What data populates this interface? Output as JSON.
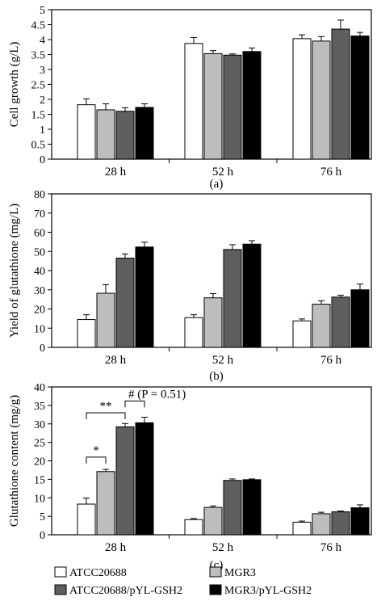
{
  "figure": {
    "colors": {
      "ATCC20688": "#ffffff",
      "MGR3": "#bdbdbd",
      "ATCC20688/pYL-GSH2": "#5f5f5f",
      "MGR3/pYL-GSH2": "#000000"
    }
  },
  "legend": {
    "items": [
      {
        "label": "ATCC20688",
        "color": "#ffffff"
      },
      {
        "label": "MGR3",
        "color": "#bdbdbd"
      },
      {
        "label": "ATCC20688/pYL-GSH2",
        "color": "#5f5f5f"
      },
      {
        "label": "MGR3/pYL-GSH2",
        "color": "#000000"
      }
    ]
  },
  "chart_data": [
    {
      "type": "bar",
      "panel_label": "(a)",
      "ylabel": "Cell growth (g/L)",
      "ylim": [
        0,
        5
      ],
      "yticks": [
        "0",
        "0.5",
        "1",
        "1.5",
        "2",
        "2.5",
        "3",
        "3.5",
        "4",
        "4.5",
        "5"
      ],
      "categories": [
        "28 h",
        "52 h",
        "76 h"
      ],
      "series": [
        {
          "name": "ATCC20688",
          "values": [
            1.82,
            3.87,
            4.03
          ],
          "errors": [
            0.2,
            0.2,
            0.13
          ]
        },
        {
          "name": "MGR3",
          "values": [
            1.65,
            3.53,
            3.95
          ],
          "errors": [
            0.2,
            0.1,
            0.15
          ]
        },
        {
          "name": "ATCC20688/pYL-GSH2",
          "values": [
            1.6,
            3.48,
            4.35
          ],
          "errors": [
            0.12,
            0.04,
            0.3
          ]
        },
        {
          "name": "MGR3/pYL-GSH2",
          "values": [
            1.73,
            3.6,
            4.12
          ],
          "errors": [
            0.12,
            0.12,
            0.12
          ]
        }
      ]
    },
    {
      "type": "bar",
      "panel_label": "(b)",
      "ylabel": "Yield of glutathione (mg/L)",
      "ylim": [
        0,
        80
      ],
      "yticks": [
        "0",
        "10",
        "20",
        "30",
        "40",
        "50",
        "60",
        "70",
        "80"
      ],
      "categories": [
        "28 h",
        "52 h",
        "76 h"
      ],
      "series": [
        {
          "name": "ATCC20688",
          "values": [
            14.5,
            15.5,
            13.8
          ],
          "errors": [
            2.5,
            1.5,
            1
          ]
        },
        {
          "name": "MGR3",
          "values": [
            28.2,
            25.8,
            22.5
          ],
          "errors": [
            4.5,
            2.2,
            1.8
          ]
        },
        {
          "name": "ATCC20688/pYL-GSH2",
          "values": [
            46.5,
            51,
            26.2
          ],
          "errors": [
            2.2,
            2.5,
            1
          ]
        },
        {
          "name": "MGR3/pYL-GSH2",
          "values": [
            52.3,
            53.8,
            30
          ],
          "errors": [
            2.5,
            1.8,
            3
          ]
        }
      ]
    },
    {
      "type": "bar",
      "panel_label": "(c)",
      "ylabel": "Glutathione content (mg/g)",
      "ylim": [
        0,
        40
      ],
      "yticks": [
        "0",
        "5",
        "10",
        "15",
        "20",
        "25",
        "30",
        "35",
        "40"
      ],
      "categories": [
        "28 h",
        "52 h",
        "76 h"
      ],
      "series": [
        {
          "name": "ATCC20688",
          "values": [
            8.3,
            4.1,
            3.4
          ],
          "errors": [
            1.6,
            0.3,
            0.3
          ]
        },
        {
          "name": "MGR3",
          "values": [
            17.1,
            7.4,
            5.7
          ],
          "errors": [
            0.6,
            0.4,
            0.4
          ]
        },
        {
          "name": "ATCC20688/pYL-GSH2",
          "values": [
            29.2,
            14.7,
            6.2
          ],
          "errors": [
            0.9,
            0.4,
            0.2
          ]
        },
        {
          "name": "MGR3/pYL-GSH2",
          "values": [
            30.3,
            14.9,
            7.3
          ],
          "errors": [
            1.5,
            0.2,
            0.8
          ]
        }
      ],
      "annotations": [
        {
          "label": "*",
          "from_series": 0,
          "to_series": 1,
          "category": 0,
          "level": 21
        },
        {
          "label": "**",
          "from_series": 0,
          "to_series": 2,
          "category": 0,
          "level": 33
        },
        {
          "label": "# (P = 0.51)",
          "from_series": 2,
          "to_series": 3,
          "category": 0,
          "level": 36.2
        }
      ]
    }
  ]
}
